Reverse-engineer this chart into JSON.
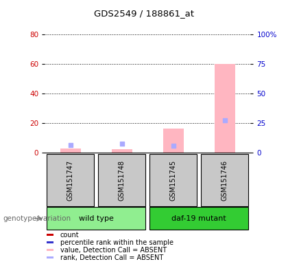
{
  "title": "GDS2549 / 188861_at",
  "samples": [
    "GSM151747",
    "GSM151748",
    "GSM151745",
    "GSM151746"
  ],
  "group_info": [
    {
      "name": "wild type",
      "indices": [
        0,
        1
      ],
      "color": "#90EE90"
    },
    {
      "name": "daf-19 mutant",
      "indices": [
        2,
        3
      ],
      "color": "#33CC33"
    }
  ],
  "value_absent": [
    2.5,
    2.0,
    16.0,
    60.0
  ],
  "rank_absent_pct": [
    6.0,
    7.5,
    5.5,
    27.0
  ],
  "ylim_left": [
    0,
    80
  ],
  "ylim_right": [
    0,
    100
  ],
  "yticks_left": [
    0,
    20,
    40,
    60,
    80
  ],
  "yticks_right": [
    0,
    25,
    50,
    75,
    100
  ],
  "left_axis_color": "#CC0000",
  "right_axis_color": "#0000CC",
  "value_absent_color": "#FFB6C1",
  "rank_absent_color": "#AAAAFF",
  "sample_box_color": "#C8C8C8",
  "genotype_label": "genotype/variation",
  "legend_items": [
    {
      "label": "count",
      "color": "#CC0000"
    },
    {
      "label": "percentile rank within the sample",
      "color": "#3333CC"
    },
    {
      "label": "value, Detection Call = ABSENT",
      "color": "#FFB6C1"
    },
    {
      "label": "rank, Detection Call = ABSENT",
      "color": "#AAAAFF"
    }
  ]
}
